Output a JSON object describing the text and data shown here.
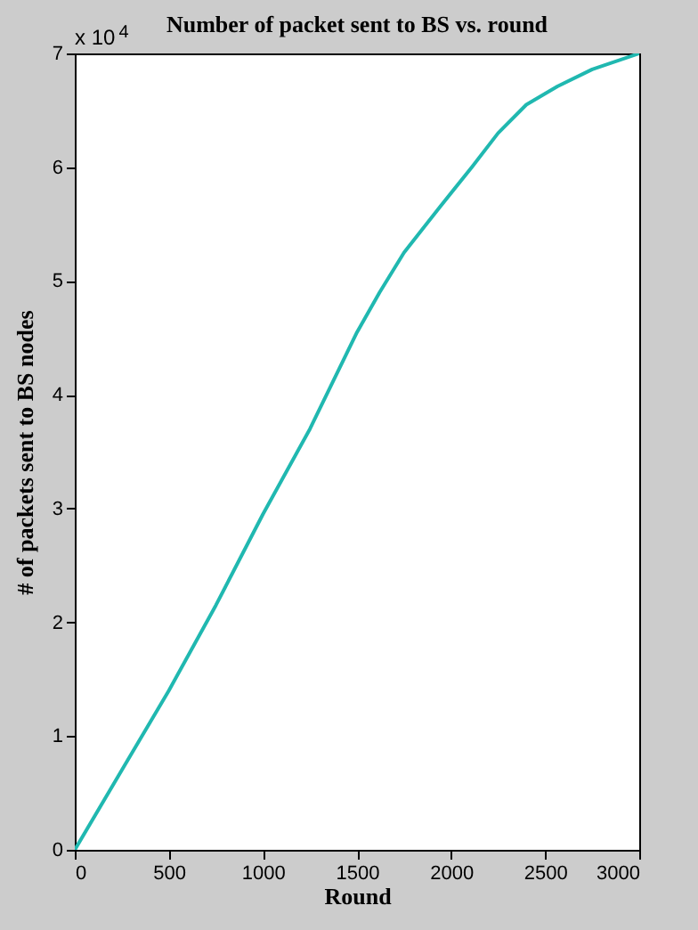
{
  "chart_data": {
    "type": "line",
    "title": "Number of packet sent to BS vs. round",
    "xlabel": "Round",
    "ylabel": "# of packets sent to BS nodes",
    "annotations": [
      "x 10$^{4}$"
    ],
    "x": [
      0,
      250,
      500,
      750,
      1000,
      1250,
      1500,
      1620,
      1750,
      1940,
      2110,
      2250,
      2400,
      2565,
      2750,
      3000
    ],
    "series": [
      {
        "color": "#20b8b0",
        "values": [
          0,
          0.7,
          1.4,
          2.15,
          2.95,
          3.7,
          4.55,
          4.9,
          5.25,
          5.65,
          6.0,
          6.3,
          6.55,
          6.71,
          6.86,
          7.0
        ]
      }
    ],
    "xlim": [
      0,
      3000
    ],
    "xticks": [
      0,
      500,
      1000,
      1500,
      2000,
      2500,
      3000
    ],
    "ylim": [
      0,
      7
    ],
    "yticks": [
      0,
      1,
      2,
      3,
      4,
      5,
      6,
      7
    ],
    "grid": false
  }
}
